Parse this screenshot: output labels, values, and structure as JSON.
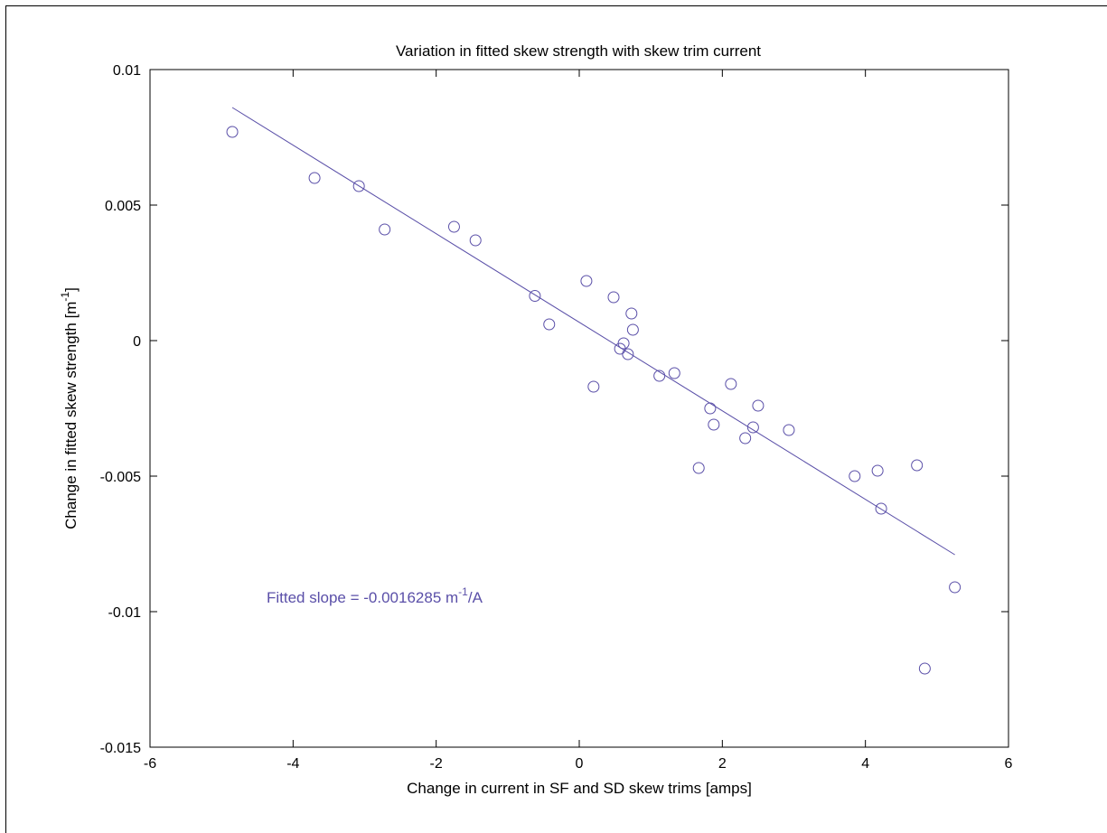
{
  "chart_data": {
    "type": "scatter",
    "title": "Variation in fitted skew strength with skew trim current",
    "xlabel": "Change in current in SF and SD skew trims [amps]",
    "ylabel": "Change in fitted skew strength [m",
    "ylabel_sup": "-1",
    "ylabel_end": "]",
    "xlim": [
      -6,
      6
    ],
    "ylim": [
      -0.015,
      0.01
    ],
    "xticks": [
      -6,
      -4,
      -2,
      0,
      2,
      4,
      6
    ],
    "xtick_labels": [
      "-6",
      "-4",
      "-2",
      "0",
      "2",
      "4",
      "6"
    ],
    "yticks": [
      -0.015,
      -0.01,
      -0.005,
      0,
      0.005,
      0.01
    ],
    "ytick_labels": [
      "-0.015",
      "-0.01",
      "-0.005",
      "0",
      "0.005",
      "0.01"
    ],
    "grid": false,
    "series_color": "#5a4fa8",
    "points": {
      "x": [
        -4.85,
        -3.7,
        -3.08,
        -2.72,
        -1.75,
        -1.45,
        -0.62,
        -0.42,
        0.1,
        0.2,
        0.48,
        0.57,
        0.62,
        0.68,
        0.73,
        0.75,
        1.12,
        1.33,
        1.67,
        1.83,
        1.88,
        2.12,
        2.32,
        2.43,
        2.5,
        2.93,
        3.85,
        4.17,
        4.22,
        4.72,
        4.83,
        5.25
      ],
      "y": [
        0.0077,
        0.006,
        0.0057,
        0.0041,
        0.0042,
        0.0037,
        0.00165,
        0.0006,
        0.0022,
        -0.0017,
        0.0016,
        -0.0003,
        -0.0001,
        -0.0005,
        0.001,
        0.0004,
        -0.0013,
        -0.0012,
        -0.0047,
        -0.0025,
        -0.0031,
        -0.0016,
        -0.0036,
        -0.0032,
        -0.0024,
        -0.0033,
        -0.005,
        -0.0048,
        -0.0062,
        -0.0046,
        -0.0121,
        -0.0091
      ]
    },
    "fit_line": {
      "x": [
        -4.85,
        5.25
      ],
      "y": [
        0.0086,
        -0.0079
      ]
    },
    "annotation": {
      "text_before": "Fitted slope = -0.0016285 m",
      "sup": "-1",
      "text_after": "/A"
    }
  }
}
